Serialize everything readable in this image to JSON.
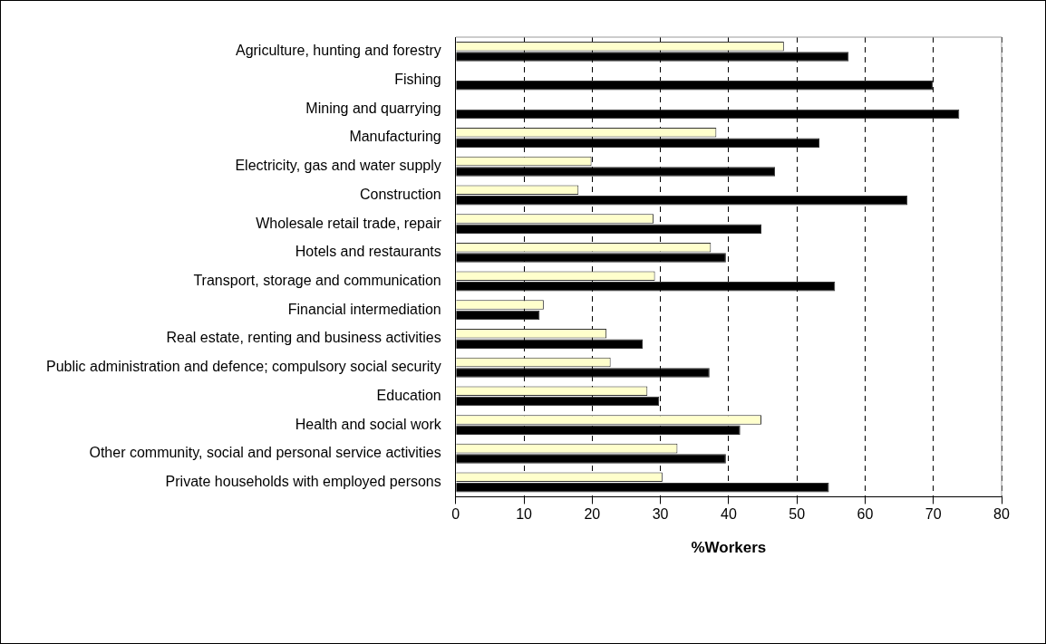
{
  "chart_data": {
    "type": "bar",
    "orientation": "horizontal",
    "xlabel": "%Workers",
    "categories": [
      "Agriculture, hunting and forestry",
      "Fishing",
      "Mining and quarrying",
      "Manufacturing",
      "Electricity, gas and water supply",
      "Construction",
      "Wholesale retail trade, repair",
      "Hotels and restaurants",
      "Transport, storage and communication",
      "Financial intermediation",
      "Real estate, renting and business activities",
      "Public administration and defence; compulsory social security",
      "Education",
      "Health and social work",
      "Other community, social and personal service activities",
      "Private households with employed persons"
    ],
    "series": [
      {
        "color": "#ffffcc",
        "values": [
          48.1,
          null,
          null,
          38.2,
          19.9,
          18.0,
          29.0,
          37.4,
          29.2,
          12.9,
          22.1,
          22.7,
          28.1,
          44.8,
          32.5,
          30.3
        ]
      },
      {
        "color": "#000000",
        "values": [
          57.6,
          69.9,
          73.8,
          53.3,
          46.8,
          66.2,
          44.8,
          39.6,
          55.6,
          12.3,
          27.4,
          37.2,
          29.8,
          41.7,
          39.6,
          54.7
        ]
      }
    ],
    "xlim": [
      0,
      80
    ],
    "xticks": [
      0,
      10,
      20,
      30,
      40,
      50,
      60,
      70,
      80
    ],
    "grid": "x",
    "legend": false
  }
}
